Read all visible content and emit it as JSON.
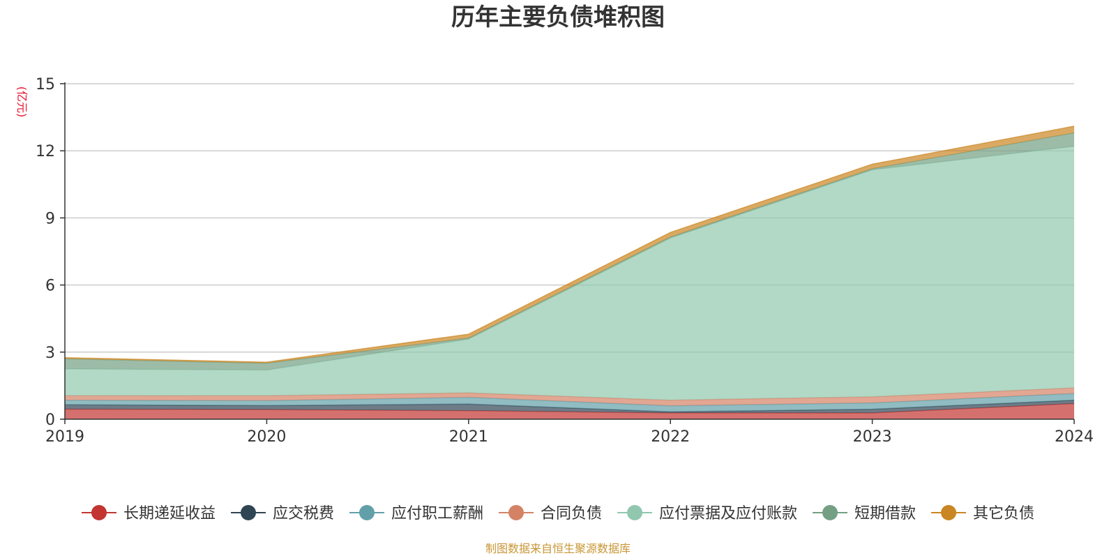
{
  "chart_data": {
    "type": "area",
    "stacked": true,
    "title": "历年主要负债堆积图",
    "unit_label": "(亿元)",
    "source": "制图数据来自恒生聚源数据库",
    "x": [
      "2019",
      "2020",
      "2021",
      "2022",
      "2023",
      "2024"
    ],
    "ylim": [
      0,
      15
    ],
    "yticks": [
      "0",
      "3",
      "6",
      "9",
      "12",
      "15"
    ],
    "grid": true,
    "legend_position": "bottom",
    "series": [
      {
        "name": "长期递延收益",
        "color": "#c23531",
        "values": [
          0.45,
          0.43,
          0.38,
          0.28,
          0.28,
          0.7
        ]
      },
      {
        "name": "应交税费",
        "color": "#2f4554",
        "values": [
          0.2,
          0.18,
          0.3,
          0.05,
          0.17,
          0.15
        ]
      },
      {
        "name": "应付职工薪酬",
        "color": "#61a0a8",
        "values": [
          0.2,
          0.22,
          0.3,
          0.27,
          0.28,
          0.3
        ]
      },
      {
        "name": "合同负债",
        "color": "#d48265",
        "values": [
          0.2,
          0.22,
          0.2,
          0.25,
          0.27,
          0.25
        ]
      },
      {
        "name": "应付票据及应付账款",
        "color": "#91c7ae",
        "values": [
          1.2,
          1.15,
          2.4,
          7.25,
          10.15,
          10.8
        ]
      },
      {
        "name": "短期借款",
        "color": "#749f83",
        "values": [
          0.45,
          0.3,
          0.05,
          0.05,
          0.05,
          0.6
        ]
      },
      {
        "name": "其它负债",
        "color": "#ca8622",
        "values": [
          0.05,
          0.05,
          0.17,
          0.2,
          0.2,
          0.3
        ]
      }
    ]
  }
}
